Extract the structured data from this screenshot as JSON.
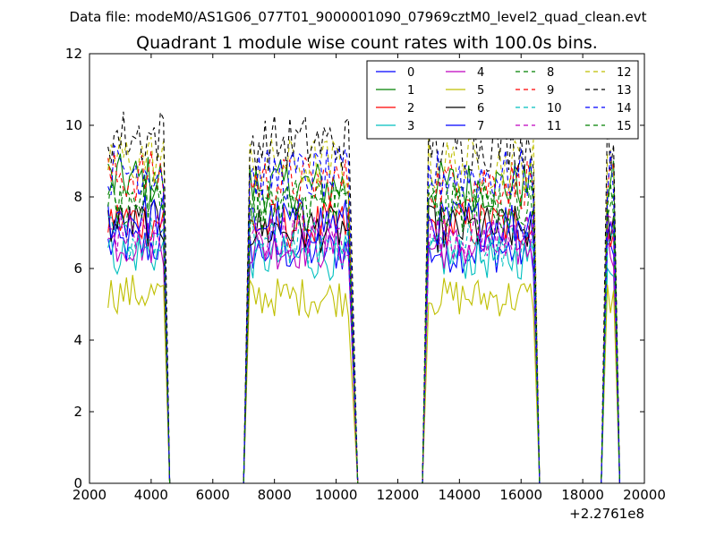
{
  "chart_data": {
    "type": "line",
    "suptitle": "Data file: modeM0/AS1G06_077T01_9000001090_07969cztM0_level2_quad_clean.evt",
    "title": "Quadrant 1 module wise count rates with 100.0s bins.",
    "xlabel": "",
    "ylabel": "",
    "x_offset_label": "+2.2761e8",
    "xlim": [
      2000,
      20000
    ],
    "ylim": [
      0,
      12
    ],
    "x_ticks": [
      2000,
      4000,
      6000,
      8000,
      10000,
      12000,
      14000,
      16000,
      18000,
      20000
    ],
    "y_ticks": [
      0,
      2,
      4,
      6,
      8,
      10,
      12
    ],
    "legend_position": "top-right",
    "legend_columns": 4,
    "segments": [
      {
        "start": 2600,
        "end": 4400,
        "fall_end": 4600
      },
      {
        "rise_start": 7000,
        "start": 7200,
        "end": 10400,
        "fall_end": 10700
      },
      {
        "rise_start": 12800,
        "start": 13000,
        "end": 16400,
        "fall_end": 16600
      },
      {
        "rise_start": 18600,
        "start": 18800,
        "end": 19000,
        "fall_end": 19200
      }
    ],
    "series": [
      {
        "name": "0",
        "color": "#0000ff",
        "dash": "solid",
        "level": 6.5
      },
      {
        "name": "1",
        "color": "#008000",
        "dash": "solid",
        "level": 8.3
      },
      {
        "name": "2",
        "color": "#ff0000",
        "dash": "solid",
        "level": 7.2
      },
      {
        "name": "3",
        "color": "#00bfbf",
        "dash": "solid",
        "level": 6.3
      },
      {
        "name": "4",
        "color": "#bf00bf",
        "dash": "solid",
        "level": 6.6
      },
      {
        "name": "5",
        "color": "#bfbf00",
        "dash": "solid",
        "level": 5.2
      },
      {
        "name": "6",
        "color": "#000000",
        "dash": "solid",
        "level": 7.1
      },
      {
        "name": "7",
        "color": "#0000ff",
        "dash": "solid",
        "level": 7.3
      },
      {
        "name": "8",
        "color": "#008000",
        "dash": "dashed",
        "level": 7.9
      },
      {
        "name": "9",
        "color": "#ff0000",
        "dash": "dashed",
        "level": 8.4
      },
      {
        "name": "10",
        "color": "#00bfbf",
        "dash": "dashed",
        "level": 6.7
      },
      {
        "name": "11",
        "color": "#bf00bf",
        "dash": "dashed",
        "level": 6.9
      },
      {
        "name": "12",
        "color": "#bfbf00",
        "dash": "dashed",
        "level": 8.9
      },
      {
        "name": "13",
        "color": "#000000",
        "dash": "dashed",
        "level": 9.5
      },
      {
        "name": "14",
        "color": "#0000ff",
        "dash": "dashed",
        "level": 8.6
      },
      {
        "name": "15",
        "color": "#008000",
        "dash": "dashed",
        "level": 7.7
      }
    ]
  }
}
